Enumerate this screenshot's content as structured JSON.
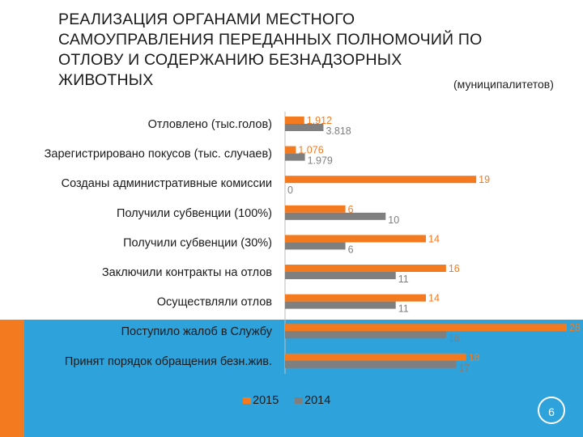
{
  "title_lines": [
    "РЕАЛИЗАЦИЯ ОРГАНАМИ МЕСТНОГО",
    "САМОУПРАВЛЕНИЯ ПЕРЕДАННЫХ ПОЛНОМОЧИЙ ПО",
    "ОТЛОВУ И СОДЕРЖАНИЮ БЕЗНАДЗОРНЫХ",
    "ЖИВОТНЫХ"
  ],
  "subtitle": "(муниципалитетов)",
  "page_number": "6",
  "colors": {
    "orange": "#f47a20",
    "gray": "#7f7f7f",
    "blue": "#2ea2db"
  },
  "chart_data": {
    "type": "bar",
    "orientation": "horizontal",
    "title": "РЕАЛИЗАЦИЯ ОРГАНАМИ МЕСТНОГО САМОУПРАВЛЕНИЯ ПЕРЕДАННЫХ ПОЛНОМОЧИЙ ПО ОТЛОВУ И СОДЕРЖАНИЮ БЕЗНАДЗОРНЫХ ЖИВОТНЫХ",
    "categories": [
      "Отловлено (тыс.голов)",
      "Зарегистрировано покусов (тыс. случаев)",
      "Созданы административные комиссии",
      "Получили субвенции (100%)",
      "Получили субвенции (30%)",
      "Заключили контракты на отлов",
      "Осуществляли отлов",
      "Поступило жалоб в Службу",
      "Принят порядок обращения безн.жив."
    ],
    "series": [
      {
        "name": "2015",
        "color": "#f47a20",
        "values": [
          1.912,
          1.076,
          19,
          6,
          14,
          16,
          14,
          28,
          18
        ],
        "labels": [
          "1.912",
          "1.076",
          "19",
          "6",
          "14",
          "16",
          "14",
          "28",
          "18"
        ]
      },
      {
        "name": "2014",
        "color": "#7f7f7f",
        "values": [
          3.818,
          1.979,
          0,
          10,
          6,
          11,
          11,
          16,
          17
        ],
        "labels": [
          "3.818",
          "1.979",
          "0",
          "10",
          "6",
          "11",
          "11",
          "16",
          "17"
        ]
      }
    ],
    "xlim": [
      0,
      28
    ],
    "legend": "bottom"
  }
}
